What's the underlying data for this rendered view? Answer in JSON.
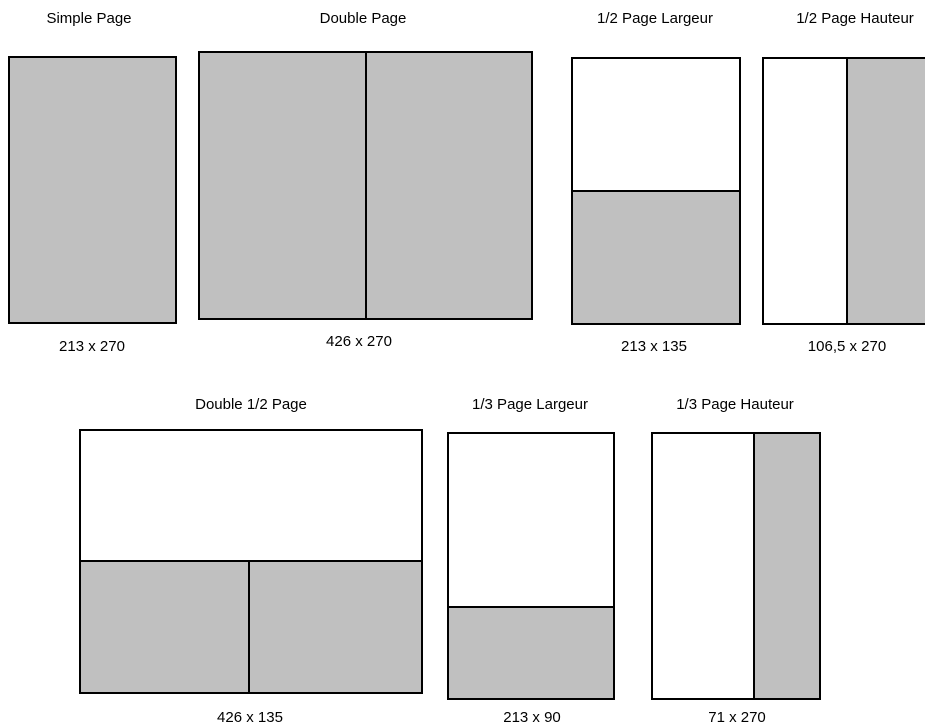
{
  "colors": {
    "shaded": "#c0c0c0",
    "border": "#000000",
    "background": "#ffffff"
  },
  "formats": [
    {
      "title": "Simple Page",
      "size": "213 x 270"
    },
    {
      "title": "Double Page",
      "size": "426 x 270"
    },
    {
      "title": "1/2 Page Largeur",
      "size": "213 x 135"
    },
    {
      "title": "1/2 Page Hauteur",
      "size": "106,5 x 270"
    },
    {
      "title": "Double 1/2 Page",
      "size": "426 x 135"
    },
    {
      "title": "1/3 Page Largeur",
      "size": "213 x 90"
    },
    {
      "title": "1/3 Page Hauteur",
      "size": "71 x 270"
    }
  ]
}
